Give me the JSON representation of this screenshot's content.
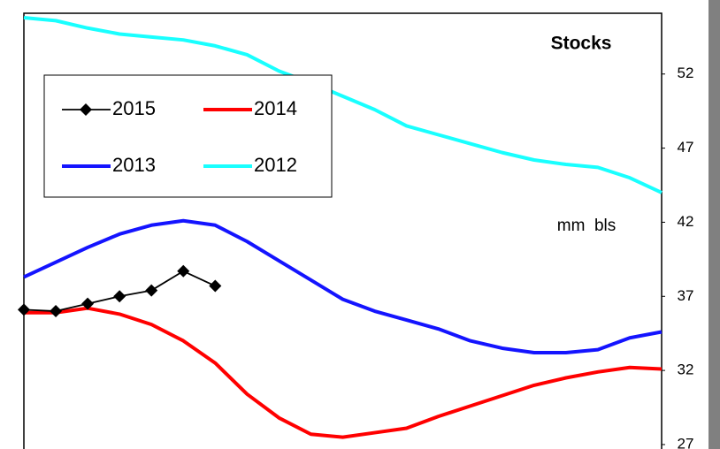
{
  "chart_data": {
    "type": "line",
    "title": "Stocks",
    "y_label": "mm  bls",
    "categories": [
      null,
      null,
      null,
      null,
      null,
      null,
      null,
      null,
      null,
      null,
      null,
      null,
      null,
      null,
      null,
      null,
      null,
      null,
      null,
      null,
      null
    ],
    "series": [
      {
        "name": "2015",
        "color": "#000000",
        "marker": "diamond",
        "values": [
          36.1,
          36.0,
          36.5,
          37.0,
          37.4,
          38.7,
          37.7,
          null,
          null,
          null,
          null,
          null,
          null,
          null,
          null,
          null,
          null,
          null,
          null,
          null,
          null
        ]
      },
      {
        "name": "2014",
        "color": "#ff0000",
        "values": [
          35.9,
          35.9,
          36.2,
          35.8,
          35.1,
          34.0,
          32.5,
          30.4,
          28.8,
          27.7,
          27.5,
          27.8,
          28.1,
          28.9,
          29.6,
          30.3,
          31.0,
          31.5,
          31.9,
          32.2,
          32.1
        ]
      },
      {
        "name": "2013",
        "color": "#1414ff",
        "values": [
          38.3,
          39.3,
          40.3,
          41.2,
          41.8,
          42.1,
          41.8,
          40.7,
          39.4,
          38.1,
          36.8,
          36.0,
          35.4,
          34.8,
          34.0,
          33.5,
          33.2,
          33.2,
          33.4,
          34.2,
          34.6
        ]
      },
      {
        "name": "2012",
        "color": "#19ffff",
        "values": [
          55.8,
          55.6,
          55.1,
          54.7,
          54.5,
          54.3,
          53.9,
          53.3,
          52.2,
          51.4,
          50.5,
          49.6,
          48.5,
          47.9,
          47.3,
          46.7,
          46.2,
          45.9,
          45.7,
          45.0,
          44.0
        ]
      }
    ],
    "ylim": [
      26.7,
      56.1
    ],
    "yticks": [
      27,
      32,
      37,
      42,
      47,
      52
    ]
  }
}
